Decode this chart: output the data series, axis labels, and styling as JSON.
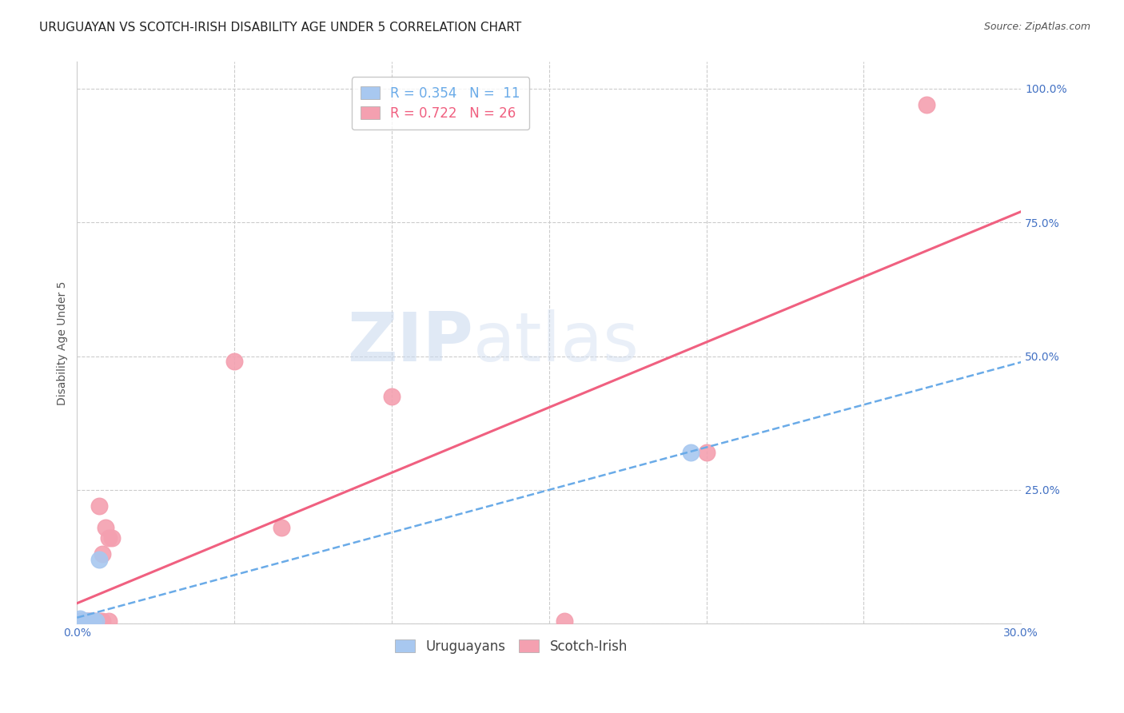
{
  "title": "URUGUAYAN VS SCOTCH-IRISH DISABILITY AGE UNDER 5 CORRELATION CHART",
  "source": "Source: ZipAtlas.com",
  "ylabel": "Disability Age Under 5",
  "xlim": [
    0.0,
    0.3
  ],
  "ylim": [
    0.0,
    1.05
  ],
  "xticks": [
    0.0,
    0.05,
    0.1,
    0.15,
    0.2,
    0.25,
    0.3
  ],
  "xticklabels": [
    "0.0%",
    "",
    "",
    "",
    "",
    "",
    "30.0%"
  ],
  "yticks_right": [
    0.0,
    0.25,
    0.5,
    0.75,
    1.0
  ],
  "ytick_labels_right": [
    "",
    "25.0%",
    "50.0%",
    "75.0%",
    "100.0%"
  ],
  "uruguayan_x": [
    0.001,
    0.001,
    0.002,
    0.002,
    0.003,
    0.003,
    0.004,
    0.005,
    0.006,
    0.007,
    0.195
  ],
  "uruguayan_y": [
    0.005,
    0.01,
    0.005,
    0.005,
    0.005,
    0.005,
    0.005,
    0.005,
    0.005,
    0.12,
    0.32
  ],
  "scotch_irish_x": [
    0.001,
    0.001,
    0.002,
    0.002,
    0.003,
    0.003,
    0.004,
    0.004,
    0.005,
    0.005,
    0.005,
    0.006,
    0.007,
    0.007,
    0.008,
    0.008,
    0.009,
    0.01,
    0.01,
    0.011,
    0.05,
    0.065,
    0.1,
    0.155,
    0.2,
    0.27
  ],
  "scotch_irish_y": [
    0.005,
    0.005,
    0.005,
    0.005,
    0.005,
    0.005,
    0.005,
    0.005,
    0.005,
    0.005,
    0.005,
    0.005,
    0.22,
    0.005,
    0.13,
    0.005,
    0.18,
    0.005,
    0.16,
    0.16,
    0.49,
    0.18,
    0.425,
    0.005,
    0.32,
    0.97
  ],
  "uruguayan_color": "#a8c8f0",
  "scotch_irish_color": "#f4a0b0",
  "uruguayan_line_color": "#6aabe8",
  "scotch_irish_line_color": "#f06080",
  "watermark_zip": "ZIP",
  "watermark_atlas": "atlas",
  "legend_uruguayan_R": "0.354",
  "legend_uruguayan_N": "11",
  "legend_scotch_irish_R": "0.722",
  "legend_scotch_irish_N": "26",
  "background_color": "#ffffff",
  "grid_color": "#cccccc",
  "title_fontsize": 11,
  "axis_label_fontsize": 10,
  "tick_fontsize": 10,
  "legend_fontsize": 12
}
